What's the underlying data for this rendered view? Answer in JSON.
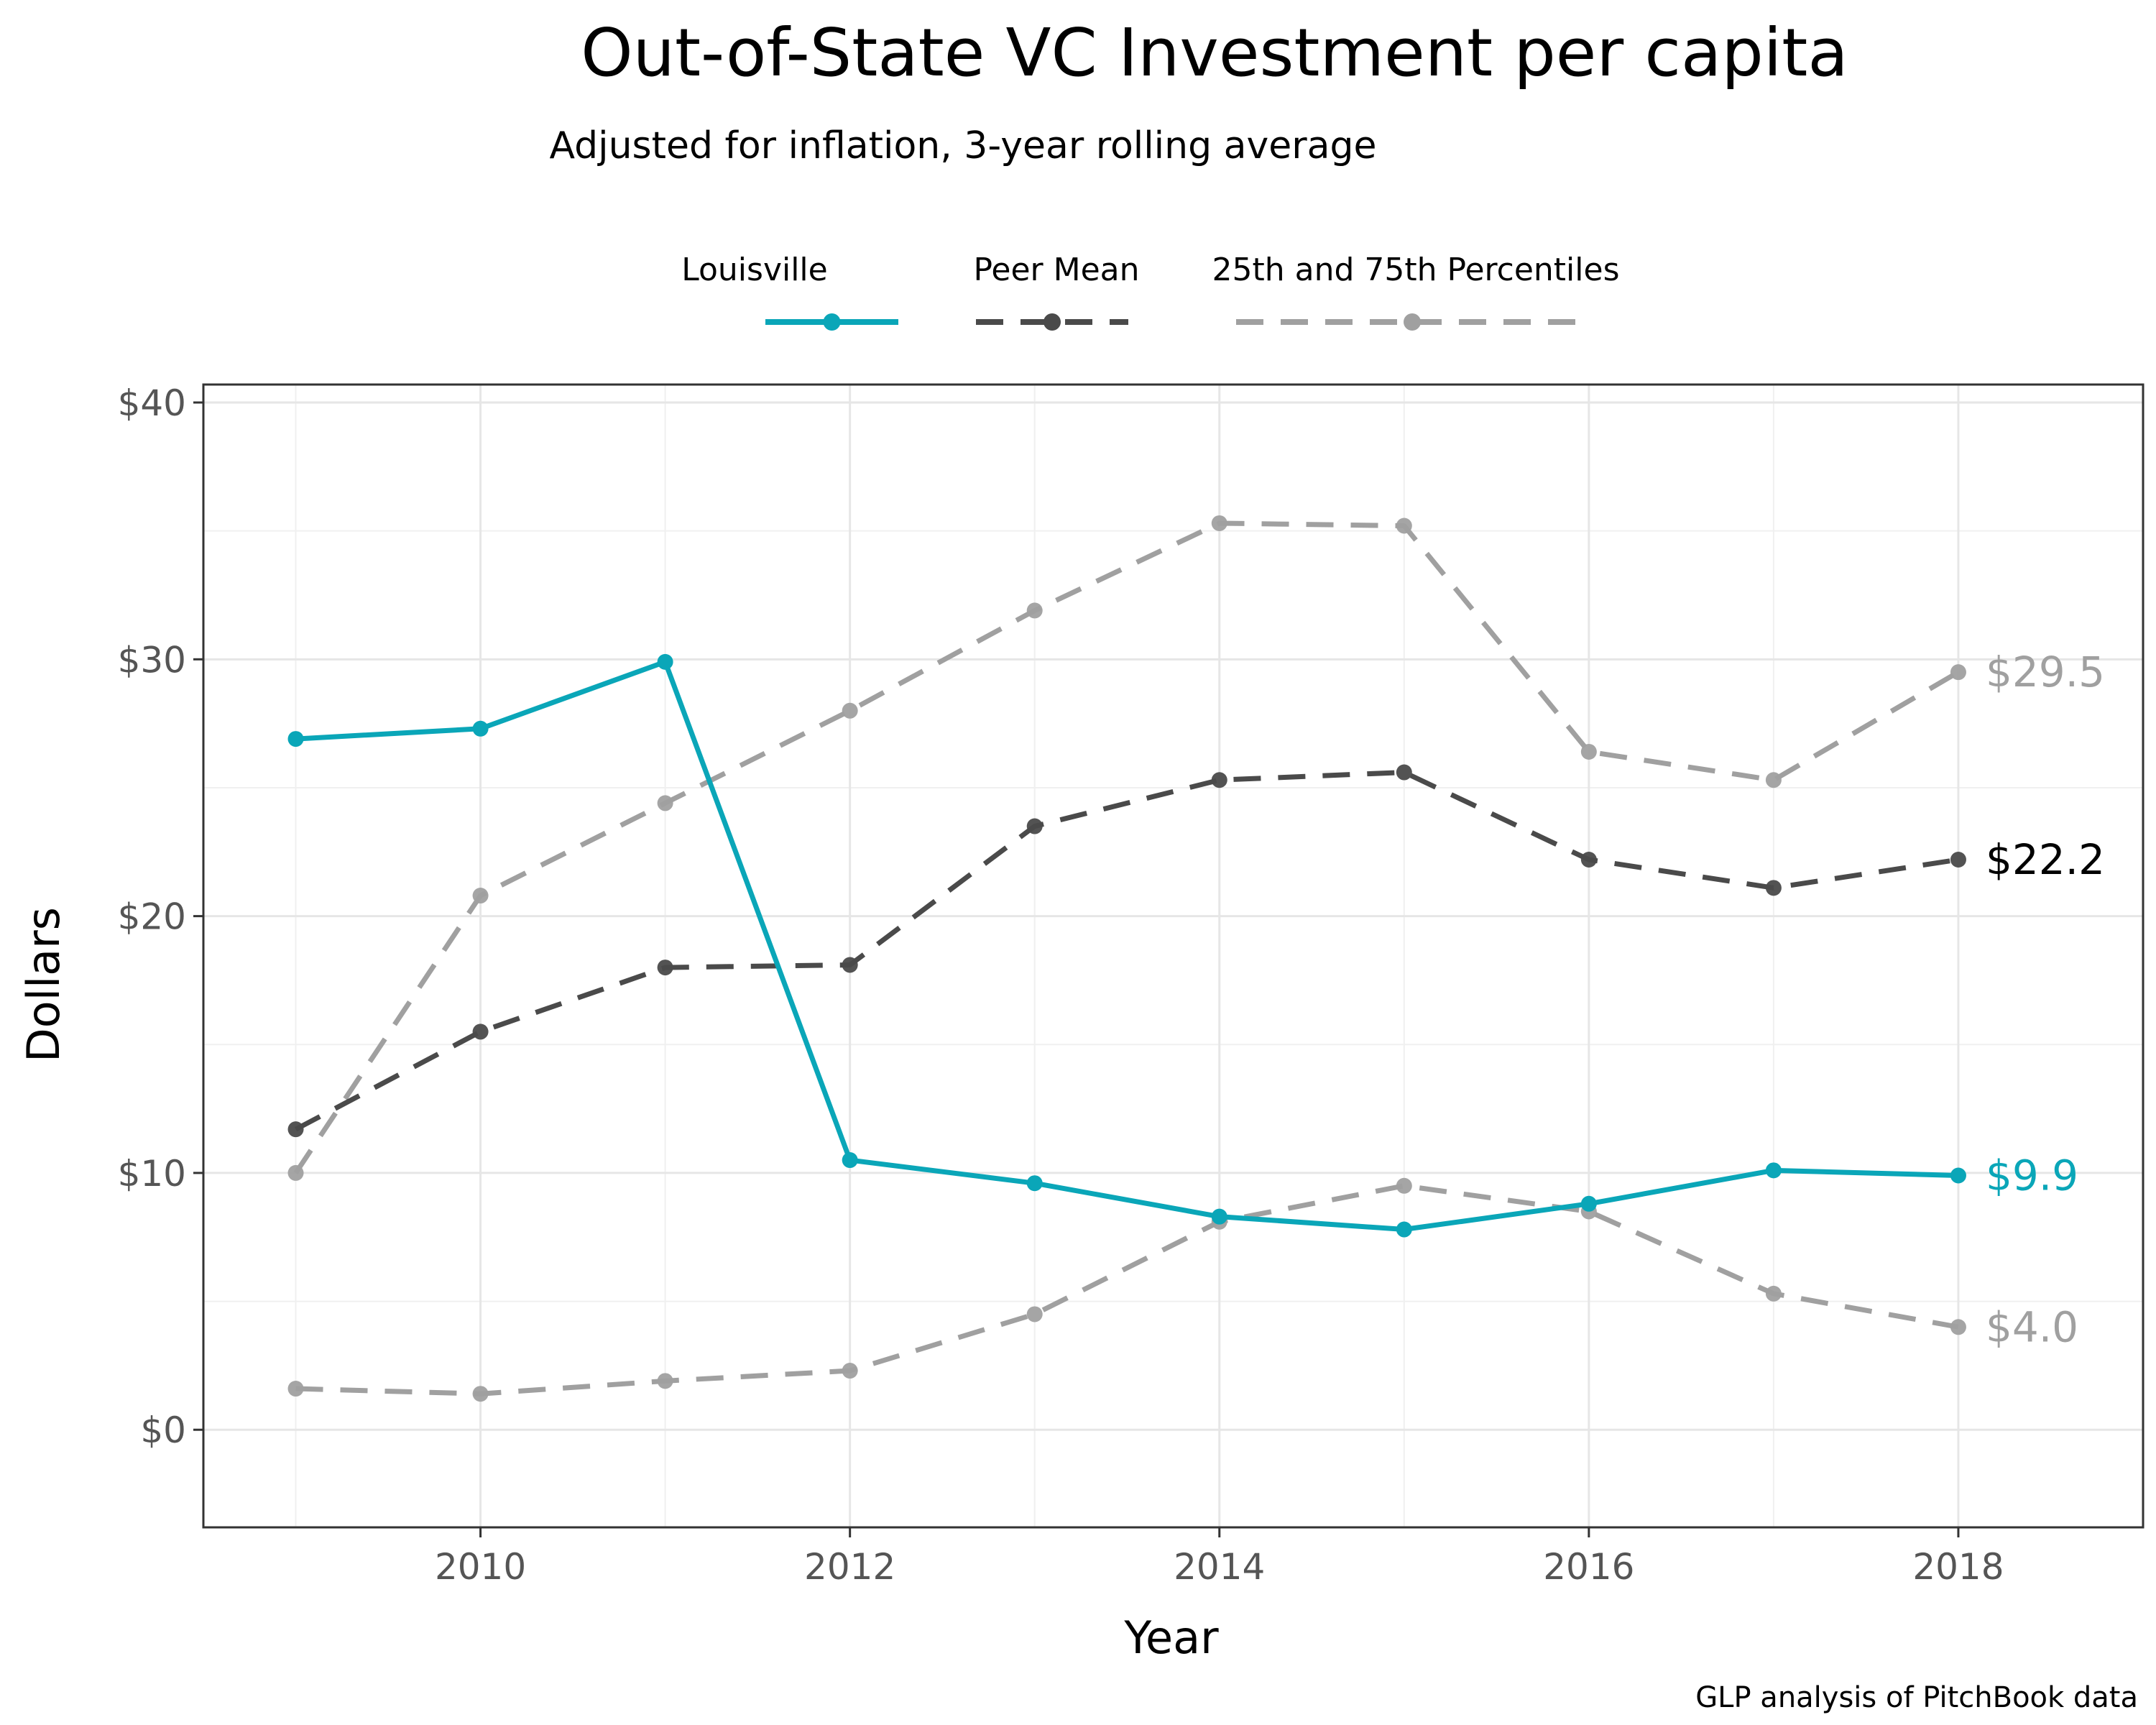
{
  "chart_data": {
    "type": "line",
    "title": "Out-of-State VC Investment per capita",
    "subtitle": "Adjusted for inflation, 3-year rolling average",
    "xlabel": "Year",
    "ylabel": "Dollars",
    "caption": "GLP analysis of PitchBook data",
    "xlim": [
      2008.5,
      2019.0
    ],
    "ylim": [
      -3.8,
      40.7
    ],
    "x": [
      2009,
      2010,
      2011,
      2012,
      2013,
      2014,
      2015,
      2016,
      2017,
      2018
    ],
    "xticks": [
      2010,
      2012,
      2014,
      2016,
      2018
    ],
    "xtick_labels": [
      "2010",
      "2012",
      "2014",
      "2016",
      "2018"
    ],
    "yticks": [
      0,
      10,
      20,
      30,
      40
    ],
    "ytick_labels": [
      "$0",
      "$10",
      "$20",
      "$30",
      "$40"
    ],
    "grid": true,
    "legend_position": "top",
    "legend": [
      {
        "label": "Louisville",
        "color": "#0aa6b8",
        "style": "solid"
      },
      {
        "label": "Peer Mean",
        "color": "#4a4a4a",
        "style": "dashed"
      },
      {
        "label": "25th and 75th Percentiles",
        "color": "#a0a0a0",
        "style": "dashed"
      }
    ],
    "series": [
      {
        "key": "p75",
        "color": "#a0a0a0",
        "style": "dashed",
        "values": [
          10.0,
          20.8,
          24.4,
          28.0,
          31.9,
          35.3,
          35.2,
          26.4,
          25.3,
          29.5
        ],
        "end_label": "$29.5"
      },
      {
        "key": "p25",
        "color": "#a0a0a0",
        "style": "dashed",
        "values": [
          1.6,
          1.4,
          1.9,
          2.3,
          4.5,
          8.1,
          9.5,
          8.5,
          5.3,
          4.0
        ],
        "end_label": "$4.0"
      },
      {
        "key": "mean",
        "color": "#4a4a4a",
        "style": "dashed",
        "values": [
          11.7,
          15.5,
          18.0,
          18.1,
          23.5,
          25.3,
          25.6,
          22.2,
          21.1,
          22.2
        ],
        "end_label": "$22.2",
        "end_label_color": "#000000"
      },
      {
        "key": "louisville",
        "color": "#0aa6b8",
        "style": "solid",
        "values": [
          26.9,
          27.3,
          29.9,
          10.5,
          9.6,
          8.3,
          7.8,
          8.8,
          10.1,
          9.9
        ],
        "end_label": "$9.9"
      }
    ]
  }
}
